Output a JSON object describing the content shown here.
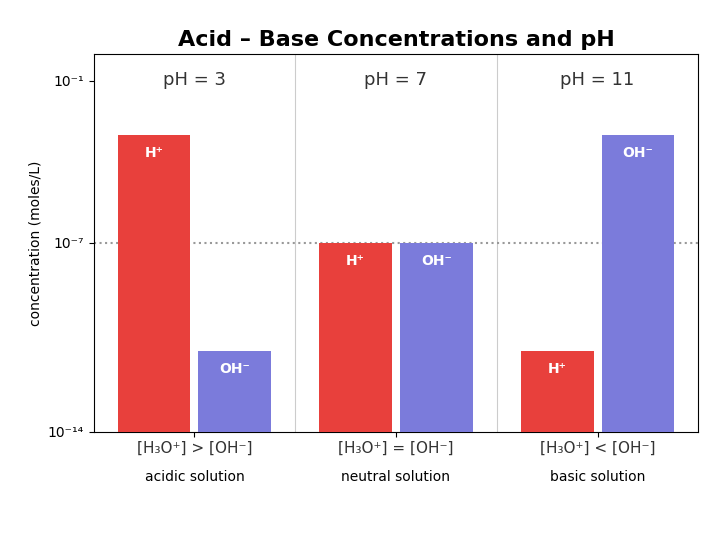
{
  "chart_data": {
    "type": "bar",
    "title": "Acid – Base Concentrations and pH",
    "ylabel": "concentration (moles/L)",
    "categories": [
      "acidic solution",
      "neutral solution",
      "basic solution"
    ],
    "series": [
      {
        "name": "H⁺",
        "color": "#e8403c",
        "values": [
          0.001,
          1e-07,
          1e-11
        ]
      },
      {
        "name": "OH⁻",
        "color": "#7b7bdb",
        "values": [
          1e-11,
          1e-07,
          0.001
        ]
      }
    ],
    "log": "y",
    "ylim": [
      1e-14,
      1
    ],
    "yticks": [
      {
        "value": 1e-14,
        "label": "10⁻¹⁴"
      },
      {
        "value": 1e-07,
        "label": "10⁻⁷"
      },
      {
        "value": 0.1,
        "label": "10⁻¹"
      }
    ],
    "hlines": [
      1e-07
    ],
    "annotations": [
      {
        "category": "acidic solution",
        "texts": [
          "pH = 3",
          "[H₃O⁺] > [OH⁻]"
        ]
      },
      {
        "category": "neutral solution",
        "texts": [
          "pH = 7",
          "[H₃O⁺] = [OH⁻]"
        ]
      },
      {
        "category": "basic solution",
        "texts": [
          "pH = 11",
          "[H₃O⁺] < [OH⁻]"
        ]
      }
    ],
    "grid": false
  }
}
